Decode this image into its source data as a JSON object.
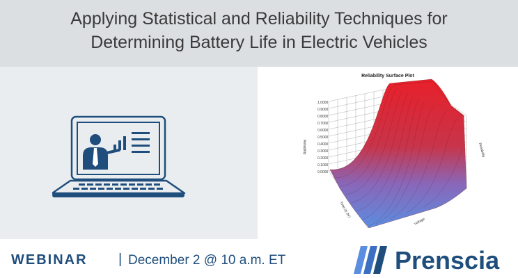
{
  "header": {
    "title_line1": "Applying Statistical and Reliability Techniques for",
    "title_line2": "Determining Battery Life in Electric Vehicles"
  },
  "plot": {
    "title": "Reliability Surface Plot",
    "z_axis_label": "Reliability",
    "x_axis_label": "Time (t) (hr)",
    "y_axis_label": "Voltage",
    "right_axis_label": "Reliability",
    "z_ticks": [
      "1.0000",
      "0.9000",
      "0.8000",
      "0.7000",
      "0.6000",
      "0.5000",
      "0.4000",
      "0.3000",
      "0.2000",
      "0.1000",
      "0.0000"
    ]
  },
  "footer": {
    "webinar_label": "WEBINAR",
    "separator": "|",
    "date_text": "December 2 @ 10 a.m. ET",
    "brand_name": "Prenscia"
  },
  "colors": {
    "brand_blue": "#1f4e7d",
    "header_bg": "#dcdfe2",
    "surface_high": "#e8202a",
    "surface_low": "#5b8de0"
  },
  "icons": [
    "presenter-laptop-icon",
    "prenscia-stripes-logo"
  ]
}
